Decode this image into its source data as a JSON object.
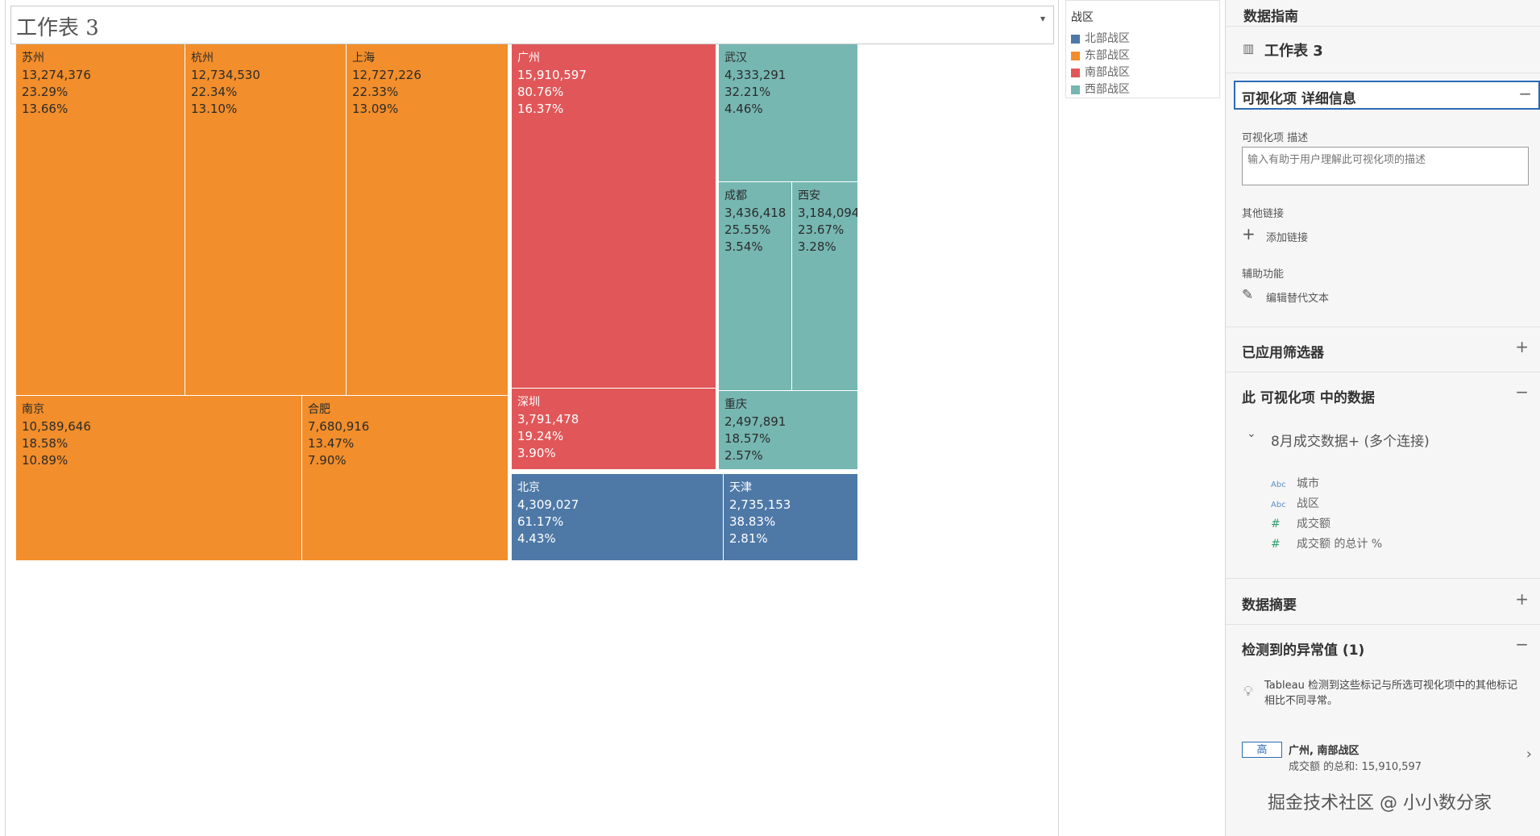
{
  "worksheet": {
    "title": "工作表 3",
    "dropdown_icon": "caret-down-icon"
  },
  "colors": {
    "north": "#4e79a7",
    "east": "#f28e2b",
    "south": "#e15759",
    "west": "#76b7b2",
    "accent": "#2a6cb6"
  },
  "chart_data": {
    "type": "treemap",
    "measure": "成交额",
    "groups": [
      {
        "region": "东部战区",
        "tiles": [
          {
            "city": "苏州",
            "value": "13,274,376",
            "pct_region": "23.29%",
            "pct_total": "13.66%"
          },
          {
            "city": "杭州",
            "value": "12,734,530",
            "pct_region": "22.34%",
            "pct_total": "13.10%"
          },
          {
            "city": "上海",
            "value": "12,727,226",
            "pct_region": "22.33%",
            "pct_total": "13.09%"
          },
          {
            "city": "南京",
            "value": "10,589,646",
            "pct_region": "18.58%",
            "pct_total": "10.89%"
          },
          {
            "city": "合肥",
            "value": "7,680,916",
            "pct_region": "13.47%",
            "pct_total": "7.90%"
          }
        ]
      },
      {
        "region": "南部战区",
        "tiles": [
          {
            "city": "广州",
            "value": "15,910,597",
            "pct_region": "80.76%",
            "pct_total": "16.37%"
          },
          {
            "city": "深圳",
            "value": "3,791,478",
            "pct_region": "19.24%",
            "pct_total": "3.90%"
          }
        ]
      },
      {
        "region": "西部战区",
        "tiles": [
          {
            "city": "武汉",
            "value": "4,333,291",
            "pct_region": "32.21%",
            "pct_total": "4.46%"
          },
          {
            "city": "成都",
            "value": "3,436,418",
            "pct_region": "25.55%",
            "pct_total": "3.54%"
          },
          {
            "city": "西安",
            "value": "3,184,094",
            "pct_region": "23.67%",
            "pct_total": "3.28%"
          },
          {
            "city": "重庆",
            "value": "2,497,891",
            "pct_region": "18.57%",
            "pct_total": "2.57%"
          }
        ]
      },
      {
        "region": "北部战区",
        "tiles": [
          {
            "city": "北京",
            "value": "4,309,027",
            "pct_region": "61.17%",
            "pct_total": "4.43%"
          },
          {
            "city": "天津",
            "value": "2,735,153",
            "pct_region": "38.83%",
            "pct_total": "2.81%"
          }
        ]
      }
    ]
  },
  "legend": {
    "title": "战区",
    "items": [
      {
        "label": "北部战区",
        "color": "#4e79a7"
      },
      {
        "label": "东部战区",
        "color": "#f28e2b"
      },
      {
        "label": "南部战区",
        "color": "#e15759"
      },
      {
        "label": "西部战区",
        "color": "#76b7b2"
      }
    ]
  },
  "panel": {
    "header": "数据指南",
    "sheet_name": "工作表 3",
    "details": {
      "title": "可视化项 详细信息",
      "desc_label": "可视化项 描述",
      "desc_placeholder": "输入有助于用户理解此可视化项的描述",
      "links_label": "其他链接",
      "add_link": "添加链接",
      "accessibility_label": "辅助功能",
      "edit_alt": "编辑替代文本"
    },
    "filters": {
      "title": "已应用筛选器"
    },
    "data": {
      "title": "此 可视化项 中的数据",
      "source": "8月成交数据+ (多个连接)",
      "fields": [
        {
          "type": "Abc",
          "name": "城市"
        },
        {
          "type": "Abc",
          "name": "战区"
        },
        {
          "type": "#",
          "name": "成交额"
        },
        {
          "type": "#",
          "name": "成交额 的总计 %"
        }
      ]
    },
    "summary": {
      "title": "数据摘要"
    },
    "outliers": {
      "title": "检测到的异常值 (1)",
      "note": "Tableau 检测到这些标记与所选可视化项中的其他标记相比不同寻常。",
      "item_badge": "高",
      "item_title": "广州, 南部战区",
      "item_detail": "成交额 的总和: 15,910,597"
    },
    "watermark": "掘金技术社区 @ 小小数分家"
  }
}
